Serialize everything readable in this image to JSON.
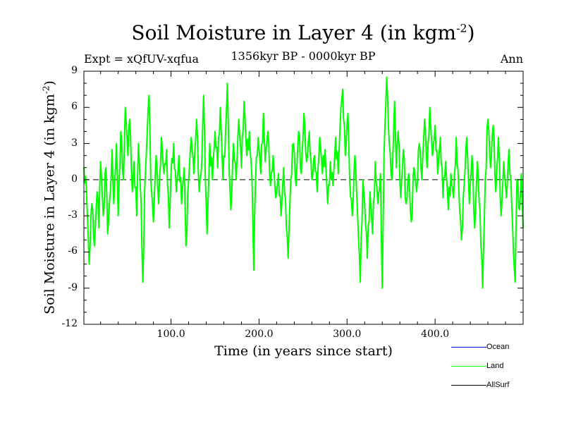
{
  "chart_data": {
    "type": "line",
    "title": "Soil Moisture in Layer 4 (in kgm",
    "title_superscript": "-2",
    "title_close": ")",
    "experiment": "Expt = xQfUV-xqfua",
    "period": "1356kyr BP - 0000kyr BP",
    "season": "Ann",
    "xlabel": "Time (in years since start)",
    "ylabel": "Soil Moisture in Layer 4 (in kgm",
    "ylabel_superscript": "-2",
    "ylabel_close": ")",
    "xlim": [
      1,
      500
    ],
    "ylim": [
      -12,
      9
    ],
    "xticks": [
      100,
      200,
      300,
      400
    ],
    "xtick_labels": [
      "100.0",
      "200.0",
      "300.0",
      "400.0"
    ],
    "yticks": [
      9,
      6,
      3,
      0,
      -3,
      -6,
      -9,
      -12
    ],
    "ytick_labels": [
      "9",
      "6",
      "3",
      "0",
      "-3",
      "-6",
      "-9",
      "-12"
    ],
    "zero_line": "dashed",
    "legend": [
      {
        "name": "Ocean",
        "color": "#0000ff"
      },
      {
        "name": "Land",
        "color": "#00ff00"
      },
      {
        "name": "AllSurf",
        "color": "#000000"
      }
    ],
    "series": [
      {
        "name": "Land",
        "color": "#00ff00",
        "knots": [
          [
            1,
            1
          ],
          [
            4,
            -1
          ],
          [
            7,
            -7
          ],
          [
            10,
            -2
          ],
          [
            13,
            -5.5
          ],
          [
            16,
            -1
          ],
          [
            18,
            -4
          ],
          [
            20,
            1.5
          ],
          [
            23,
            -3
          ],
          [
            26,
            1
          ],
          [
            28,
            -4.5
          ],
          [
            31,
            -1
          ],
          [
            33,
            2.5
          ],
          [
            35,
            -2
          ],
          [
            38,
            3
          ],
          [
            40,
            -3
          ],
          [
            43,
            4
          ],
          [
            46,
            0
          ],
          [
            48,
            6
          ],
          [
            51,
            2
          ],
          [
            53,
            5
          ],
          [
            56,
            -1
          ],
          [
            58,
            1.5
          ],
          [
            61,
            -3
          ],
          [
            63,
            3
          ],
          [
            66,
            -2
          ],
          [
            68,
            -8.5
          ],
          [
            70,
            -1
          ],
          [
            73,
            4
          ],
          [
            75,
            7
          ],
          [
            77,
            0
          ],
          [
            80,
            -3.5
          ],
          [
            83,
            2
          ],
          [
            86,
            -2
          ],
          [
            89,
            3.5
          ],
          [
            92,
            0.5
          ],
          [
            95,
            2.5
          ],
          [
            98,
            -4
          ],
          [
            100,
            0.5
          ],
          [
            103,
            3
          ],
          [
            106,
            -1
          ],
          [
            109,
            2
          ],
          [
            112,
            -2
          ],
          [
            115,
            1
          ],
          [
            117,
            -5.5
          ],
          [
            120,
            0
          ],
          [
            123,
            3.5
          ],
          [
            126,
            0.5
          ],
          [
            129,
            5
          ],
          [
            132,
            -1
          ],
          [
            135,
            1.5
          ],
          [
            137,
            7
          ],
          [
            139,
            0
          ],
          [
            141,
            -4.5
          ],
          [
            144,
            3
          ],
          [
            147,
            0
          ],
          [
            150,
            4
          ],
          [
            153,
            1
          ],
          [
            156,
            6
          ],
          [
            159,
            0
          ],
          [
            162,
            4
          ],
          [
            164,
            8
          ],
          [
            166,
            1
          ],
          [
            168,
            -2.5
          ],
          [
            171,
            3
          ],
          [
            174,
            0
          ],
          [
            177,
            5
          ],
          [
            180,
            1
          ],
          [
            183,
            6.5
          ],
          [
            186,
            2
          ],
          [
            189,
            4
          ],
          [
            192,
            0
          ],
          [
            194,
            -7.5
          ],
          [
            196,
            0
          ],
          [
            199,
            3.5
          ],
          [
            202,
            0.5
          ],
          [
            205,
            5.5
          ],
          [
            207,
            1.5
          ],
          [
            210,
            4
          ],
          [
            213,
            -0.5
          ],
          [
            216,
            2
          ],
          [
            219,
            -1.5
          ],
          [
            222,
            0.5
          ],
          [
            225,
            -3
          ],
          [
            228,
            1
          ],
          [
            231,
            -4
          ],
          [
            233,
            -6.5
          ],
          [
            236,
            0
          ],
          [
            239,
            3
          ],
          [
            242,
            -0.5
          ],
          [
            245,
            4
          ],
          [
            248,
            0.5
          ],
          [
            251,
            5.5
          ],
          [
            254,
            1.5
          ],
          [
            257,
            4
          ],
          [
            260,
            0
          ],
          [
            263,
            2
          ],
          [
            266,
            -1
          ],
          [
            269,
            3.5
          ],
          [
            272,
            0.5
          ],
          [
            275,
            2.5
          ],
          [
            278,
            -2
          ],
          [
            281,
            1.5
          ],
          [
            284,
            -0.5
          ],
          [
            287,
            3.5
          ],
          [
            290,
            0.5
          ],
          [
            293,
            6
          ],
          [
            295,
            7.5
          ],
          [
            298,
            2
          ],
          [
            301,
            5.5
          ],
          [
            303,
            0
          ],
          [
            306,
            -3
          ],
          [
            309,
            2
          ],
          [
            312,
            -3
          ],
          [
            315,
            -8.5
          ],
          [
            318,
            0
          ],
          [
            320,
            -2
          ],
          [
            323,
            -6.5
          ],
          [
            326,
            -1
          ],
          [
            329,
            -4.5
          ],
          [
            332,
            1.5
          ],
          [
            335,
            -2
          ],
          [
            338,
            0.5
          ],
          [
            340,
            -9
          ],
          [
            342,
            2
          ],
          [
            345,
            8.5
          ],
          [
            348,
            3
          ],
          [
            351,
            0
          ],
          [
            354,
            6.5
          ],
          [
            356,
            1
          ],
          [
            358,
            4
          ],
          [
            361,
            -1.5
          ],
          [
            364,
            2.5
          ],
          [
            367,
            -2
          ],
          [
            370,
            0.5
          ],
          [
            373,
            -3.5
          ],
          [
            376,
            1
          ],
          [
            379,
            -1
          ],
          [
            382,
            3
          ],
          [
            385,
            0
          ],
          [
            388,
            5
          ],
          [
            391,
            1
          ],
          [
            394,
            6
          ],
          [
            397,
            2
          ],
          [
            400,
            4.5
          ],
          [
            403,
            0.5
          ],
          [
            406,
            3.5
          ],
          [
            409,
            -1.5
          ],
          [
            412,
            1.5
          ],
          [
            415,
            -2.5
          ],
          [
            418,
            0.5
          ],
          [
            421,
            -1.5
          ],
          [
            424,
            3.5
          ],
          [
            427,
            -1
          ],
          [
            430,
            -5
          ],
          [
            433,
            -0.5
          ],
          [
            436,
            3.5
          ],
          [
            439,
            -2
          ],
          [
            442,
            2
          ],
          [
            445,
            -4
          ],
          [
            448,
            1.5
          ],
          [
            451,
            -2.5
          ],
          [
            454,
            -9
          ],
          [
            457,
            0
          ],
          [
            460,
            5
          ],
          [
            463,
            1
          ],
          [
            466,
            4.5
          ],
          [
            469,
            -1
          ],
          [
            472,
            3.5
          ],
          [
            475,
            -3
          ],
          [
            478,
            1.5
          ],
          [
            481,
            -1.5
          ],
          [
            484,
            2.5
          ],
          [
            487,
            -2
          ],
          [
            489,
            -6
          ],
          [
            491,
            -8.5
          ],
          [
            493,
            0
          ],
          [
            496,
            -2.5
          ],
          [
            498,
            0.5
          ],
          [
            500,
            -4
          ]
        ]
      }
    ]
  }
}
